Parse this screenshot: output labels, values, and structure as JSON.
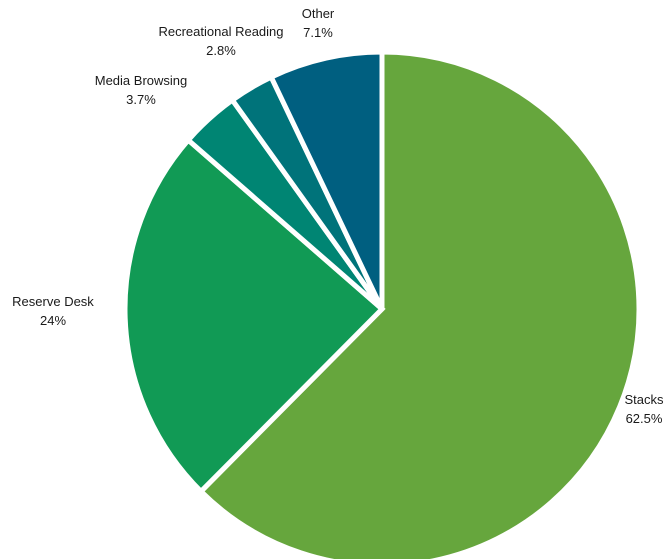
{
  "chart_data": {
    "type": "pie",
    "title": "",
    "start_angle": "12 o'clock",
    "direction": "clockwise",
    "slices": [
      {
        "label": "Stacks",
        "value": 62.5,
        "display": "62.5%",
        "color": "#66a63d"
      },
      {
        "label": "Reserve Desk",
        "value": 24,
        "display": "24%",
        "color": "#119a55"
      },
      {
        "label": "Media Browsing",
        "value": 3.7,
        "display": "3.7%",
        "color": "#008573"
      },
      {
        "label": "Recreational Reading",
        "value": 2.8,
        "display": "2.8%",
        "color": "#00737a"
      },
      {
        "label": "Other",
        "value": 7.1,
        "display": "7.1%",
        "color": "#005f80"
      }
    ],
    "legend": "none"
  }
}
